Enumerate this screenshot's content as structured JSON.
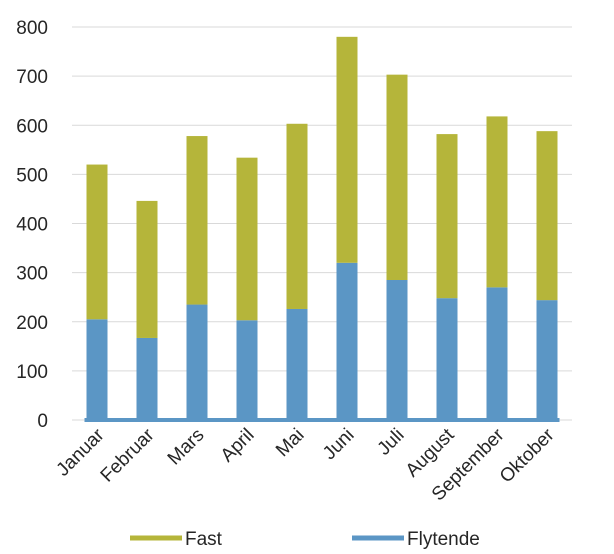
{
  "chart_data": {
    "type": "bar",
    "stacked": true,
    "categories": [
      "Januar",
      "Februar",
      "Mars",
      "April",
      "Mai",
      "Juni",
      "Juli",
      "August",
      "September",
      "Oktober"
    ],
    "series": [
      {
        "name": "Flytende",
        "color": "#5b96c5",
        "values": [
          205,
          167,
          235,
          203,
          226,
          320,
          285,
          248,
          270,
          244
        ]
      },
      {
        "name": "Fast",
        "color": "#b5b53a",
        "values": [
          315,
          279,
          343,
          331,
          377,
          460,
          418,
          334,
          348,
          344
        ]
      }
    ],
    "ylim": [
      0,
      800
    ],
    "yticks": [
      0,
      100,
      200,
      300,
      400,
      500,
      600,
      700,
      800
    ],
    "grid": true,
    "legend": "bottom",
    "legend_order": [
      "Fast",
      "Flytende"
    ],
    "title": "",
    "xlabel": "",
    "ylabel": ""
  }
}
